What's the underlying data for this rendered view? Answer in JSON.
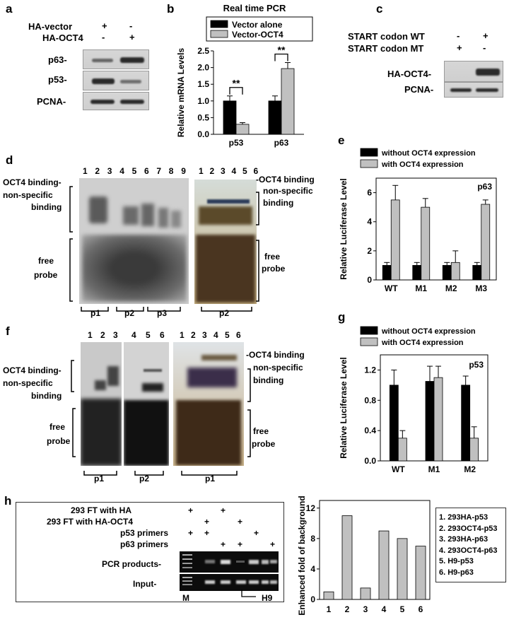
{
  "panel_a": {
    "letter": "a",
    "rows": [
      "HA-vector",
      "HA-OCT4"
    ],
    "signs": [
      [
        "+",
        "-"
      ],
      [
        "-",
        "+"
      ]
    ],
    "blots": [
      "p63-",
      "p53-",
      "PCNA-"
    ]
  },
  "panel_b": {
    "letter": "b",
    "chart_data": {
      "type": "bar",
      "title": "Real time PCR",
      "ylabel": "Relative mRNA Levels",
      "categories": [
        "p53",
        "p63"
      ],
      "series": [
        {
          "name": "Vector alone",
          "values": [
            1.0,
            1.0
          ],
          "errors": [
            0.15,
            0.15
          ],
          "color": "#000000"
        },
        {
          "name": "Vector-OCT4",
          "values": [
            0.3,
            1.97
          ],
          "errors": [
            0.05,
            0.18
          ],
          "color": "#c0c0c0"
        }
      ],
      "ylim": [
        0,
        2.5
      ],
      "yticks": [
        "0.0",
        "0.5",
        "1.0",
        "1.5",
        "2.0",
        "2.5"
      ],
      "annotations": [
        "**",
        "**"
      ]
    }
  },
  "panel_c": {
    "letter": "c",
    "rows": [
      "START codon WT",
      "START codon MT"
    ],
    "signs": [
      [
        "-",
        "+"
      ],
      [
        "+",
        "-"
      ]
    ],
    "blots": [
      "HA-OCT4-",
      "PCNA-"
    ]
  },
  "panel_d": {
    "letter": "d",
    "lanes_left": [
      "1",
      "2",
      "3",
      "4",
      "5",
      "6",
      "7",
      "8",
      "9"
    ],
    "lanes_right": [
      "1",
      "2",
      "3",
      "4",
      "5",
      "6"
    ],
    "label_oct4": "OCT4 binding-",
    "label_nonspecific": "non-specific",
    "label_binding": "binding",
    "label_free": "free",
    "label_probe": "probe",
    "label_oct4_right": "-OCT4 binding",
    "probes_left": [
      "p1",
      "p2",
      "p3"
    ],
    "probes_right": [
      "p2"
    ]
  },
  "panel_e": {
    "letter": "e",
    "chart_data": {
      "type": "bar",
      "title": "",
      "ylabel": "Relative Luciferase Level",
      "annotation": "p63",
      "categories": [
        "WT",
        "M1",
        "M2",
        "M3"
      ],
      "series": [
        {
          "name": "without OCT4 expression",
          "values": [
            1.0,
            1.0,
            1.0,
            1.0
          ],
          "errors": [
            0.2,
            0.2,
            0.2,
            0.2
          ],
          "color": "#000000"
        },
        {
          "name": "with OCT4 expression",
          "values": [
            5.5,
            5.0,
            1.2,
            5.2
          ],
          "errors": [
            1.0,
            0.6,
            0.8,
            0.3
          ],
          "color": "#c0c0c0"
        }
      ],
      "ylim": [
        0,
        7
      ],
      "yticks": [
        "0",
        "2",
        "4",
        "6"
      ]
    }
  },
  "panel_f": {
    "letter": "f",
    "lanes_a": [
      "1",
      "2",
      "3"
    ],
    "lanes_b": [
      "4",
      "5",
      "6"
    ],
    "lanes_c": [
      "1",
      "2",
      "3",
      "4",
      "5",
      "6"
    ],
    "label_oct4": "OCT4 binding-",
    "label_nonspecific": "non-specific",
    "label_binding": "binding",
    "label_free": "free",
    "label_probe": "probe",
    "label_oct4_right": "-OCT4 binding",
    "probes": [
      "p1",
      "p2",
      "p1"
    ]
  },
  "panel_g": {
    "letter": "g",
    "chart_data": {
      "type": "bar",
      "title": "",
      "ylabel": "Relative Luciferase Level",
      "annotation": "p53",
      "categories": [
        "WT",
        "M1",
        "M2"
      ],
      "series": [
        {
          "name": "without OCT4 expression",
          "values": [
            1.0,
            1.05,
            1.0
          ],
          "errors": [
            0.2,
            0.2,
            0.12
          ],
          "color": "#000000"
        },
        {
          "name": "with OCT4 expression",
          "values": [
            0.3,
            1.1,
            0.3
          ],
          "errors": [
            0.1,
            0.15,
            0.15
          ],
          "color": "#c0c0c0"
        }
      ],
      "ylim": [
        0,
        1.4
      ],
      "yticks": [
        "0.0",
        "0.4",
        "0.8",
        "1.2"
      ]
    }
  },
  "panel_h": {
    "letter": "h",
    "rows": [
      "293 FT with HA",
      "293 FT with HA-OCT4",
      "p53 primers",
      "p63 primers"
    ],
    "signs": [
      [
        "+",
        "",
        "+",
        "",
        "",
        ""
      ],
      [
        "",
        "+",
        "",
        "+",
        "",
        ""
      ],
      [
        "+",
        "+",
        "",
        "",
        "+",
        ""
      ],
      [
        "",
        "",
        "+",
        "+",
        "",
        "+"
      ]
    ],
    "gels": [
      "PCR products-",
      "Input-"
    ],
    "marker": "M",
    "h9": "H9",
    "chart_data": {
      "type": "bar",
      "title": "",
      "ylabel": "Enhanced fold of background",
      "categories": [
        "1",
        "2",
        "3",
        "4",
        "5",
        "6"
      ],
      "values": [
        1,
        11,
        1.5,
        9,
        8,
        7
      ],
      "ylim": [
        0,
        13
      ],
      "yticks": [
        "0",
        "4",
        "8",
        "12"
      ],
      "color": "#c0c0c0"
    },
    "legend": [
      "1. 293HA-p53",
      "2. 293OCT4-p53",
      "3. 293HA-p63",
      "4. 293OCT4-p63",
      "5. H9-p53",
      "6. H9-p63"
    ]
  }
}
